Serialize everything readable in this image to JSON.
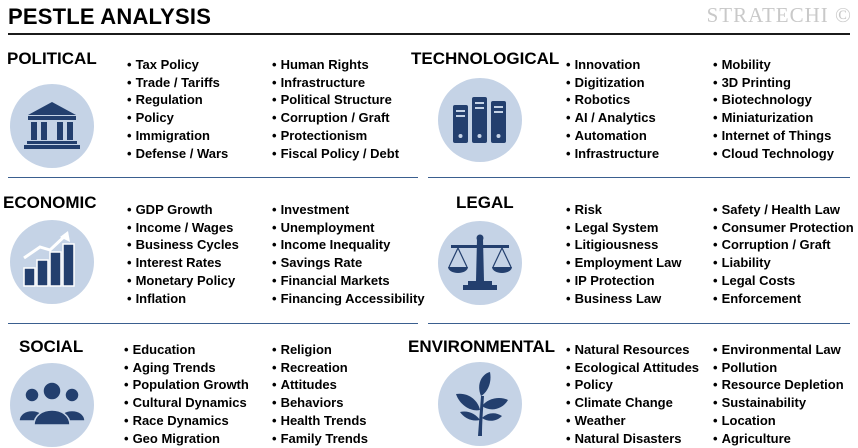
{
  "header": {
    "title": "PESTLE ANALYSIS",
    "brand": "STRATECHI ©"
  },
  "colors": {
    "icon_fill": "#233f6e",
    "icon_circle": "#c5d3e6",
    "divider": "#3a5f8f"
  },
  "sections": {
    "political": {
      "title": "POLITICAL",
      "icon": "courthouse-icon",
      "col1": [
        "Tax Policy",
        "Trade / Tariffs",
        "Regulation",
        "Policy",
        "Immigration",
        "Defense / Wars"
      ],
      "col2": [
        "Human Rights",
        "Infrastructure",
        "Political Structure",
        "Corruption / Graft",
        "Protectionism",
        "Fiscal Policy / Debt"
      ]
    },
    "technological": {
      "title": "TECHNOLOGICAL",
      "icon": "servers-icon",
      "col1": [
        "Innovation",
        "Digitization",
        "Robotics",
        "AI / Analytics",
        "Automation",
        "Infrastructure"
      ],
      "col2": [
        "Mobility",
        "3D Printing",
        "Biotechnology",
        "Miniaturization",
        "Internet of Things",
        "Cloud Technology"
      ]
    },
    "economic": {
      "title": "ECONOMIC",
      "icon": "growth-chart-icon",
      "col1": [
        "GDP Growth",
        "Income / Wages",
        "Business Cycles",
        "Interest Rates",
        "Monetary Policy",
        "Inflation"
      ],
      "col2": [
        "Investment",
        "Unemployment",
        "Income Inequality",
        "Savings Rate",
        "Financial Markets",
        "Financing Accessibility"
      ]
    },
    "legal": {
      "title": "LEGAL",
      "icon": "scales-icon",
      "col1": [
        "Risk",
        "Legal System",
        "Litigiousness",
        "Employment Law",
        "IP Protection",
        "Business Law"
      ],
      "col2": [
        "Safety  / Health Law",
        "Consumer Protection",
        "Corruption / Graft",
        "Liability",
        "Legal Costs",
        "Enforcement"
      ]
    },
    "social": {
      "title": "SOCIAL",
      "icon": "people-group-icon",
      "col1": [
        "Education",
        "Aging Trends",
        "Population Growth",
        "Cultural Dynamics",
        "Race Dynamics",
        "Geo Migration"
      ],
      "col2": [
        "Religion",
        "Recreation",
        "Attitudes",
        "Behaviors",
        "Health Trends",
        "Family Trends"
      ]
    },
    "environmental": {
      "title": "ENVIRONMENTAL",
      "icon": "plant-icon",
      "col1": [
        "Natural Resources",
        "Ecological Attitudes",
        "Policy",
        "Climate Change",
        "Weather",
        "Natural Disasters"
      ],
      "col2": [
        "Environmental Law",
        "Pollution",
        "Resource Depletion",
        "Sustainability",
        "Location",
        "Agriculture"
      ]
    }
  }
}
